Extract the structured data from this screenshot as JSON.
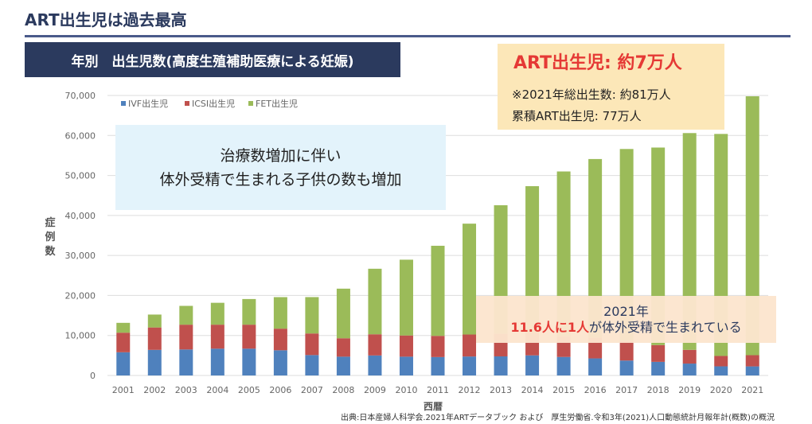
{
  "header": {
    "title": "ART出生児は過去最高"
  },
  "banner": {
    "text": "年別　出生児数(高度生殖補助医療による妊娠)"
  },
  "callouts": {
    "treatment": {
      "line1": "治療数増加に伴い",
      "line2": "体外受精で生まれる子供の数も増加"
    },
    "summary": {
      "headline": "ART出生児: 約7万人",
      "line1": "※2021年総出生数: 約81万人",
      "line2": "累積ART出生児: 77万人"
    },
    "ratio": {
      "line1": "2021年",
      "highlight": "11.6人に1人",
      "rest": "が体外受精で生まれている"
    }
  },
  "source": "出典:日本産婦人科学会.2021年ARTデータブック および　厚生労働省.令和3年(2021)人口動態統計月報年計(概数)の概況",
  "chart_data": {
    "type": "bar",
    "stacked": true,
    "xlabel": "西暦",
    "ylabel": "症例数",
    "ylim": [
      0,
      70000
    ],
    "yticks": [
      0,
      10000,
      20000,
      30000,
      40000,
      50000,
      60000,
      70000
    ],
    "ytick_labels": [
      "0",
      "10,000",
      "20,000",
      "30,000",
      "40,000",
      "50,000",
      "60,000",
      "70,000"
    ],
    "grid": true,
    "legend_position": "top-left",
    "categories": [
      "2001",
      "2002",
      "2003",
      "2004",
      "2005",
      "2006",
      "2007",
      "2008",
      "2009",
      "2010",
      "2011",
      "2012",
      "2013",
      "2014",
      "2015",
      "2016",
      "2017",
      "2018",
      "2019",
      "2020",
      "2021"
    ],
    "series": [
      {
        "name": "IVF出生児",
        "color": "#4f81bd",
        "values": [
          5800,
          6400,
          6500,
          6700,
          6700,
          6300,
          5100,
          4700,
          5000,
          4700,
          4600,
          4740,
          4776,
          5025,
          4629,
          4266,
          3731,
          3402,
          2974,
          2282,
          2268
        ]
      },
      {
        "name": "ICSI出生児",
        "color": "#c0504d",
        "values": [
          4900,
          5600,
          6200,
          6000,
          6000,
          5400,
          5400,
          4600,
          5300,
          5300,
          5300,
          5498,
          5630,
          5702,
          5166,
          5166,
          4826,
          4194,
          3433,
          2596,
          2800
        ]
      },
      {
        "name": "FET出生児",
        "color": "#9bbb59",
        "values": [
          2458,
          3228,
          4700,
          5468,
          6412,
          7887,
          9095,
          12404,
          16380,
          18945,
          22526,
          27715,
          32148,
          36595,
          41206,
          44678,
          48060,
          49383,
          54191,
          55503,
          64729
        ]
      }
    ]
  }
}
